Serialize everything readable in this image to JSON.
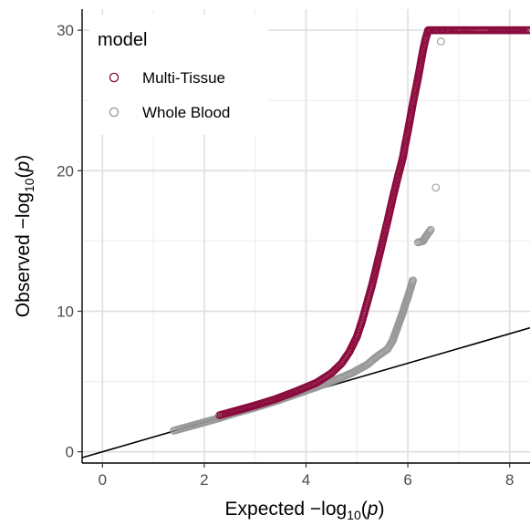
{
  "chart_data": {
    "type": "scatter",
    "title": "",
    "xlabel": "Expected -log10(p)",
    "ylabel": "Observed -log10(p)",
    "xlim": [
      -0.4,
      8.4
    ],
    "ylim": [
      -0.8,
      31.5
    ],
    "x_ticks": [
      0,
      2,
      4,
      6,
      8
    ],
    "y_ticks": [
      0,
      10,
      20,
      30
    ],
    "x_tick_labels": [
      "0",
      "2",
      "4",
      "6",
      "8"
    ],
    "y_tick_labels": [
      "0",
      "10",
      "20",
      "30"
    ],
    "grid": true,
    "legend": {
      "title": "model",
      "position": "top-left",
      "entries": [
        "Multi-Tissue",
        "Whole Blood"
      ]
    },
    "reference_line": {
      "slope": 1.05,
      "intercept": 0,
      "color": "#000000"
    },
    "series": [
      {
        "name": "Multi-Tissue",
        "color": "#8b0a3c",
        "marker": "open-circle",
        "points": [
          [
            2.3,
            2.6
          ],
          [
            2.6,
            2.9
          ],
          [
            3.0,
            3.3
          ],
          [
            3.4,
            3.75
          ],
          [
            3.8,
            4.3
          ],
          [
            4.2,
            4.9
          ],
          [
            4.5,
            5.6
          ],
          [
            4.7,
            6.3
          ],
          [
            4.85,
            7.1
          ],
          [
            5.0,
            8.2
          ],
          [
            5.1,
            9.3
          ],
          [
            5.2,
            10.6
          ],
          [
            5.3,
            11.9
          ],
          [
            5.4,
            13.4
          ],
          [
            5.5,
            14.9
          ],
          [
            5.6,
            16.4
          ],
          [
            5.7,
            18.0
          ],
          [
            5.8,
            19.5
          ],
          [
            5.9,
            20.9
          ],
          [
            5.95,
            21.9
          ],
          [
            6.0,
            22.8
          ],
          [
            6.05,
            23.8
          ],
          [
            6.1,
            24.8
          ],
          [
            6.15,
            25.7
          ],
          [
            6.2,
            26.6
          ],
          [
            6.25,
            27.6
          ],
          [
            6.3,
            28.6
          ],
          [
            6.35,
            29.4
          ],
          [
            6.4,
            30.0
          ],
          [
            6.5,
            30.0
          ],
          [
            6.6,
            30.0
          ],
          [
            6.7,
            30.0
          ],
          [
            6.8,
            30.0
          ],
          [
            7.0,
            30.0
          ],
          [
            7.3,
            30.0
          ],
          [
            7.6,
            30.0
          ],
          [
            7.8,
            30.0
          ],
          [
            8.0,
            30.0
          ],
          [
            8.4,
            30.0
          ]
        ]
      },
      {
        "name": "Whole Blood",
        "color": "#999999",
        "marker": "open-circle",
        "points": [
          [
            1.4,
            1.5
          ],
          [
            1.7,
            1.8
          ],
          [
            2.0,
            2.1
          ],
          [
            2.3,
            2.4
          ],
          [
            2.6,
            2.75
          ],
          [
            3.0,
            3.15
          ],
          [
            3.4,
            3.6
          ],
          [
            3.8,
            4.1
          ],
          [
            4.2,
            4.6
          ],
          [
            4.6,
            5.15
          ],
          [
            4.9,
            5.6
          ],
          [
            5.2,
            6.2
          ],
          [
            5.4,
            6.8
          ],
          [
            5.6,
            7.3
          ],
          [
            5.7,
            7.9
          ],
          [
            5.75,
            8.4
          ],
          [
            5.8,
            8.9
          ],
          [
            5.85,
            9.4
          ],
          [
            5.9,
            9.9
          ],
          [
            5.95,
            10.5
          ],
          [
            6.0,
            11.0
          ],
          [
            6.05,
            11.6
          ],
          [
            6.1,
            12.2
          ],
          [
            6.2,
            14.9
          ],
          [
            6.3,
            15.0
          ],
          [
            6.35,
            15.3
          ],
          [
            6.45,
            15.8
          ],
          [
            6.55,
            18.8
          ],
          [
            6.65,
            29.2
          ]
        ]
      }
    ]
  }
}
